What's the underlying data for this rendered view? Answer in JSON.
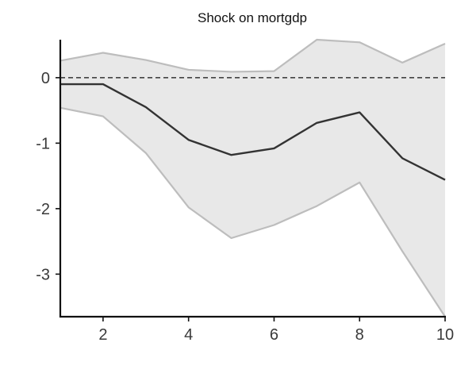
{
  "chart_data": {
    "type": "line",
    "title": "Shock on mortgdp",
    "xlabel": "",
    "ylabel": "",
    "x": [
      1,
      2,
      3,
      4,
      5,
      6,
      7,
      8,
      9,
      10
    ],
    "xlim": [
      1,
      10
    ],
    "ylim": [
      -3.65,
      0.58
    ],
    "xticks": [
      2,
      4,
      6,
      8,
      10
    ],
    "yticks": [
      0,
      -1,
      -2,
      -3
    ],
    "grid": false,
    "legend": "none",
    "reference_line": {
      "y": 0,
      "style": "dashed"
    },
    "series": [
      {
        "values": [
          -0.1,
          -0.1,
          -0.45,
          -0.95,
          -1.18,
          -1.08,
          -0.69,
          -0.53,
          -1.23,
          -1.56
        ],
        "color": "#333333"
      },
      {
        "values": [
          0.26,
          0.38,
          0.27,
          0.12,
          0.09,
          0.1,
          0.58,
          0.54,
          0.23,
          0.52
        ],
        "color": "#bdbdbd"
      },
      {
        "values": [
          -0.46,
          -0.59,
          -1.15,
          -1.98,
          -2.45,
          -2.25,
          -1.96,
          -1.6,
          -2.65,
          -3.65
        ],
        "color": "#bdbdbd"
      }
    ],
    "band_fill": "#e8e8e8",
    "axis_color": "#111111"
  }
}
